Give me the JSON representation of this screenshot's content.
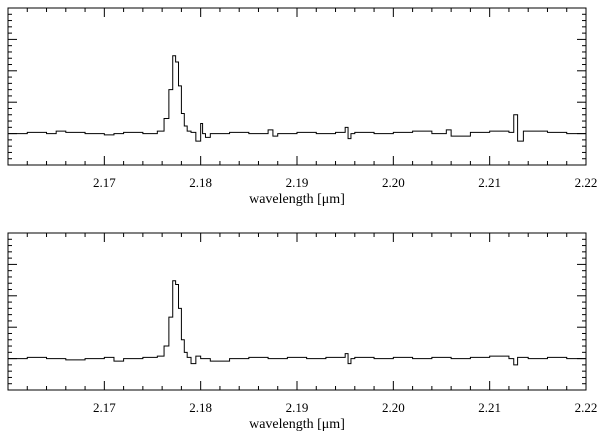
{
  "chart_data": [
    {
      "type": "line",
      "style": "step",
      "xlabel": "wavelength [μm]",
      "xlim": [
        2.16,
        2.22
      ],
      "ylim": [
        -0.25,
        1.0
      ],
      "xticks": [
        2.17,
        2.18,
        2.19,
        2.2,
        2.21,
        2.22
      ],
      "xtick_labels": [
        "2.17",
        "2.18",
        "2.19",
        "2.20",
        "2.21",
        "2.22"
      ],
      "y_tick_labels_shown": false,
      "series": [
        {
          "x": [
            2.16,
            2.162,
            2.164,
            2.165,
            2.166,
            2.168,
            2.17,
            2.171,
            2.172,
            2.174,
            2.1755,
            2.1762,
            2.1767,
            2.1771,
            2.1774,
            2.1777,
            2.178,
            2.1783,
            2.1786,
            2.179,
            2.1795,
            2.18,
            2.1802,
            2.1805,
            2.181,
            2.183,
            2.185,
            2.187,
            2.1875,
            2.188,
            2.19,
            2.192,
            2.194,
            2.195,
            2.1953,
            2.1956,
            2.196,
            2.198,
            2.2,
            2.202,
            2.204,
            2.2055,
            2.206,
            2.208,
            2.21,
            2.212,
            2.2125,
            2.2129,
            2.2135,
            2.216,
            2.218,
            2.22
          ],
          "y": [
            0.0,
            0.01,
            0.0,
            0.02,
            0.01,
            0.0,
            -0.01,
            0.0,
            0.01,
            0.0,
            0.02,
            0.12,
            0.35,
            0.62,
            0.57,
            0.38,
            0.16,
            0.06,
            0.02,
            0.01,
            -0.06,
            0.08,
            0.0,
            -0.03,
            0.0,
            0.01,
            0.0,
            0.03,
            -0.02,
            0.0,
            0.01,
            0.0,
            0.01,
            0.05,
            -0.04,
            0.0,
            0.01,
            0.0,
            0.01,
            0.02,
            0.0,
            0.03,
            -0.02,
            0.01,
            0.02,
            0.01,
            0.15,
            -0.06,
            0.02,
            0.01,
            0.0,
            0.0
          ]
        }
      ]
    },
    {
      "type": "line",
      "style": "step",
      "xlabel": "wavelength [μm]",
      "xlim": [
        2.16,
        2.22
      ],
      "ylim": [
        -0.25,
        1.0
      ],
      "xticks": [
        2.17,
        2.18,
        2.19,
        2.2,
        2.21,
        2.22
      ],
      "xtick_labels": [
        "2.17",
        "2.18",
        "2.19",
        "2.20",
        "2.21",
        "2.22"
      ],
      "y_tick_labels_shown": false,
      "series": [
        {
          "x": [
            2.16,
            2.162,
            2.164,
            2.166,
            2.168,
            2.17,
            2.171,
            2.172,
            2.174,
            2.1755,
            2.1762,
            2.1767,
            2.1771,
            2.1774,
            2.1777,
            2.178,
            2.1783,
            2.1786,
            2.179,
            2.1795,
            2.18,
            2.181,
            2.183,
            2.185,
            2.187,
            2.189,
            2.191,
            2.193,
            2.195,
            2.1953,
            2.1956,
            2.196,
            2.198,
            2.2,
            2.202,
            2.204,
            2.206,
            2.208,
            2.21,
            2.212,
            2.2125,
            2.2129,
            2.214,
            2.216,
            2.218,
            2.22
          ],
          "y": [
            0.0,
            0.01,
            0.0,
            -0.01,
            0.0,
            0.01,
            -0.02,
            0.0,
            0.01,
            0.02,
            0.1,
            0.33,
            0.62,
            0.59,
            0.4,
            0.15,
            0.05,
            0.01,
            -0.04,
            0.02,
            0.0,
            -0.02,
            0.0,
            0.01,
            0.0,
            0.01,
            0.0,
            0.01,
            0.04,
            -0.04,
            0.0,
            0.01,
            0.0,
            0.01,
            0.0,
            0.01,
            0.0,
            0.01,
            0.02,
            0.0,
            -0.05,
            0.01,
            0.0,
            0.01,
            0.0,
            0.0
          ]
        }
      ]
    }
  ]
}
